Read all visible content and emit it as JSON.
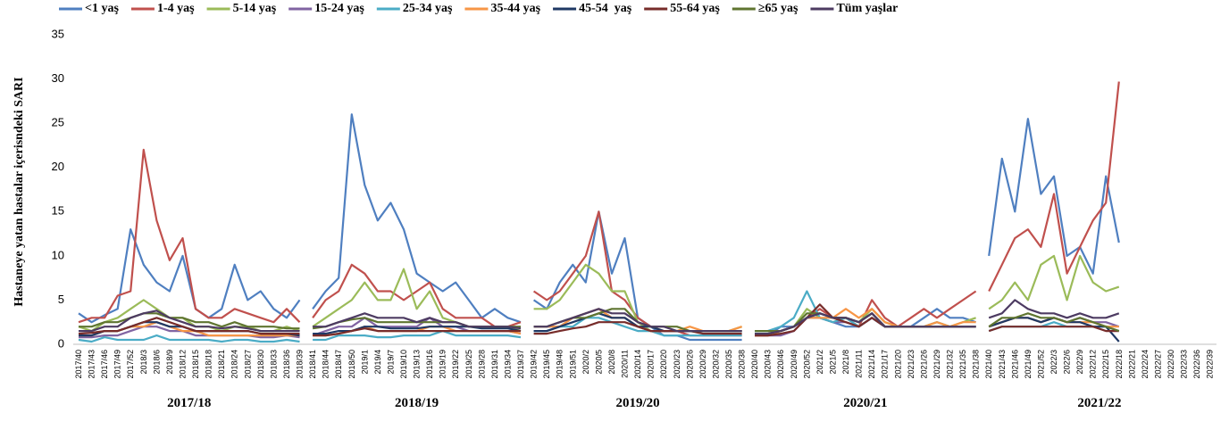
{
  "chart_data": {
    "type": "line",
    "y_label": "Hastaneye yatan hastalar içerisndeki SARI",
    "ylim": [
      0,
      35
    ],
    "yticks": [
      0,
      5,
      10,
      15,
      20,
      25,
      30,
      35
    ],
    "grid": false,
    "legend": "top",
    "groups": [
      {
        "label": "2017/18",
        "categories": [
          "2017/40",
          "2017/43",
          "2017/46",
          "2017/49",
          "2017/52",
          "2018/3",
          "2018/6",
          "2018/9",
          "2018/12",
          "2018/15",
          "2018/18",
          "2018/21",
          "2018/24",
          "2018/27",
          "2018/30",
          "2018/33",
          "2018/36",
          "2018/39"
        ]
      },
      {
        "label": "2018/19",
        "categories": [
          "2018/41",
          "2018/44",
          "2018/47",
          "2018/50",
          "2019/1",
          "2019/4",
          "2019/7",
          "2019/10",
          "2019/13",
          "2019/16",
          "2019/19",
          "2019/22",
          "2019/25",
          "2019/28",
          "2019/31",
          "2019/34",
          "2019/37"
        ]
      },
      {
        "label": "2019/20",
        "categories": [
          "2019/42",
          "2019/45",
          "2019/48",
          "2019/51",
          "2020/2",
          "2020/5",
          "2020/8",
          "2020/11",
          "2020/14",
          "2020/17",
          "2020/20",
          "2020/23",
          "2020/26",
          "2020/29",
          "2020/32",
          "2020/35",
          "2020/38"
        ]
      },
      {
        "label": "2020/21",
        "categories": [
          "2020/40",
          "2020/43",
          "2020/46",
          "2020/49",
          "2020/52",
          "2021/2",
          "2021/5",
          "2021/8",
          "2021/11",
          "2021/14",
          "2021/17",
          "2021/20",
          "2021/23",
          "2021/26",
          "2021/29",
          "2021/32",
          "2021/35",
          "2021/38"
        ]
      },
      {
        "label": "2021/22",
        "categories": [
          "2021/40",
          "2021/43",
          "2021/46",
          "2021/49",
          "2021/52",
          "2022/3",
          "2022/6",
          "2022/9",
          "2022/12",
          "2022/15",
          "2022/18",
          "2022/21",
          "2022/24",
          "2022/27",
          "2022/30",
          "2022/33",
          "2022/36",
          "2022/39"
        ]
      }
    ],
    "series": [
      {
        "name": "<1 yaş",
        "color": "#4f7fc0",
        "values": [
          3.5,
          2.5,
          3.3,
          4,
          13,
          9,
          7,
          6,
          10,
          4,
          3,
          4,
          9,
          5,
          6,
          4,
          3,
          5,
          4,
          6,
          7.5,
          26,
          18,
          14,
          16,
          13,
          8,
          7,
          6,
          7,
          5,
          3,
          4,
          3,
          2.5,
          5,
          4,
          7,
          9,
          7,
          15,
          8,
          12,
          3,
          2,
          1,
          1,
          0.5,
          0.5,
          0.5,
          0.5,
          0.5,
          1,
          1,
          2,
          2,
          3,
          3,
          2.5,
          2,
          2,
          3,
          2,
          2,
          2,
          3,
          4,
          3,
          3,
          2.5,
          10,
          21,
          15,
          25.5,
          17,
          19,
          10,
          11,
          8,
          19,
          11.5,
          null,
          null,
          null,
          null,
          null,
          null,
          null
        ]
      },
      {
        "name": "1-4 yaş",
        "color": "#c0504d",
        "values": [
          2.5,
          3,
          3,
          5.5,
          6,
          22,
          14,
          9.5,
          12,
          4,
          3,
          3,
          4,
          3.5,
          3,
          2.5,
          4,
          2.5,
          3,
          5,
          6,
          9,
          8,
          6,
          6,
          5,
          6,
          7,
          4,
          3,
          3,
          3,
          2,
          2,
          2.5,
          6,
          5,
          6,
          8,
          10,
          15,
          6,
          5,
          3,
          2,
          1.5,
          1.5,
          1,
          1,
          1,
          1,
          1,
          1,
          1,
          1.5,
          2,
          3,
          4,
          3,
          3,
          2,
          5,
          3,
          2,
          3,
          4,
          3,
          4,
          5,
          6,
          6,
          9,
          12,
          13,
          11,
          17,
          8,
          11,
          14,
          16,
          29.7,
          null,
          null,
          null,
          null,
          null,
          null,
          null
        ]
      },
      {
        "name": "5-14 yaş",
        "color": "#9bbb59",
        "values": [
          2,
          1.5,
          2.5,
          3,
          4,
          5,
          4,
          3,
          3,
          2,
          2,
          1.5,
          2,
          2,
          1.5,
          1.5,
          2,
          1.5,
          2,
          3,
          4,
          5,
          7,
          5,
          5,
          8.5,
          4,
          6,
          3,
          2.5,
          2,
          2,
          2,
          2,
          1.5,
          4,
          4,
          5,
          7,
          9,
          8,
          6,
          6,
          2.5,
          1.5,
          1.5,
          1.5,
          1.5,
          1.5,
          1.5,
          1.5,
          2,
          1,
          1,
          1.5,
          2,
          4,
          3,
          2.5,
          3,
          2.5,
          4,
          2.5,
          2,
          2,
          2,
          2.5,
          2,
          2.5,
          3,
          4,
          5,
          7,
          5,
          9,
          10,
          5,
          10,
          7,
          6,
          6.5,
          null,
          null,
          null,
          null,
          null,
          null,
          null
        ]
      },
      {
        "name": "15-24 yaş",
        "color": "#8064a2",
        "values": [
          0.8,
          0.8,
          1,
          1,
          1.5,
          2,
          2,
          1.5,
          1.5,
          1,
          1,
          1,
          1,
          1,
          0.8,
          0.8,
          1,
          0.8,
          1,
          1.5,
          2,
          2,
          3,
          2,
          2,
          2,
          2,
          3,
          2,
          2,
          1.5,
          1.5,
          1.5,
          1.5,
          1.2,
          2,
          2,
          2,
          3,
          3.5,
          4,
          3,
          3,
          2,
          1.5,
          1.5,
          1.5,
          1.5,
          1.5,
          1.5,
          1.5,
          1.5,
          1,
          1,
          1,
          1.5,
          3,
          3,
          2.5,
          2.5,
          2,
          3,
          2,
          2,
          2,
          2,
          2,
          2,
          2,
          2,
          2,
          2.5,
          3,
          3,
          2.5,
          3,
          2.5,
          3,
          2.5,
          2.5,
          2,
          null,
          null,
          null,
          null,
          null,
          null,
          null
        ]
      },
      {
        "name": "25-34 yaş",
        "color": "#4bacc6",
        "values": [
          0.5,
          0.3,
          0.8,
          0.5,
          0.5,
          0.5,
          1,
          0.5,
          0.5,
          0.5,
          0.5,
          0.3,
          0.5,
          0.5,
          0.3,
          0.3,
          0.5,
          0.3,
          0.5,
          0.5,
          1,
          1,
          1,
          0.8,
          0.8,
          1,
          1,
          1,
          1.5,
          1,
          1,
          1,
          1,
          1,
          0.8,
          1.5,
          1.5,
          2,
          2,
          3,
          3,
          2.5,
          2,
          1.5,
          1.5,
          1,
          1,
          1,
          1,
          1,
          1,
          1,
          1.5,
          1.5,
          2,
          3,
          6,
          3,
          2.5,
          3,
          2,
          3,
          2,
          2,
          2,
          2,
          2.5,
          2,
          2,
          2,
          1.5,
          2,
          2,
          2,
          2,
          2.5,
          2,
          2,
          2,
          2,
          1.5,
          null,
          null,
          null,
          null,
          null,
          null,
          null
        ]
      },
      {
        "name": "35-44 yaş",
        "color": "#f79646",
        "values": [
          1,
          1,
          1.5,
          1.5,
          2,
          2,
          2.5,
          2,
          1.5,
          1.5,
          1,
          1,
          1,
          1,
          1,
          1,
          1,
          1,
          1,
          1,
          1.2,
          1.5,
          2,
          1.5,
          1.5,
          1.5,
          1.5,
          2,
          2,
          1.5,
          1.5,
          1.5,
          1.5,
          1.5,
          1.2,
          2,
          2,
          2,
          3,
          3.5,
          4,
          3,
          3,
          2,
          1.5,
          1.5,
          1.5,
          2,
          1.5,
          1.5,
          1.5,
          2,
          1,
          1,
          1.5,
          2,
          3,
          3,
          3,
          4,
          3,
          4,
          2.5,
          2,
          2,
          2,
          2.5,
          2,
          2.5,
          2.5,
          2,
          2.5,
          3,
          3,
          2.5,
          3,
          2.5,
          2.5,
          2.5,
          2,
          2,
          null,
          null,
          null,
          null,
          null,
          null,
          null
        ]
      },
      {
        "name": "45-54  yaş",
        "color": "#1f3864",
        "values": [
          1,
          1,
          1.5,
          1.5,
          2,
          2.5,
          2.5,
          2,
          2,
          1.5,
          1.5,
          1.5,
          1.5,
          1.5,
          1.2,
          1.2,
          1.2,
          1,
          1.2,
          1.2,
          1.5,
          1.5,
          2,
          2,
          1.8,
          1.8,
          1.8,
          2,
          2,
          2,
          2,
          1.8,
          1.8,
          1.8,
          1.5,
          1.5,
          1.5,
          2,
          2.5,
          3,
          3.5,
          3,
          3,
          2,
          2,
          1.5,
          1.5,
          1.5,
          1.5,
          1.5,
          1.5,
          1.5,
          1.2,
          1.2,
          1.5,
          2,
          3,
          3.5,
          3,
          3,
          2.5,
          3.5,
          2,
          2,
          2,
          2,
          2,
          2,
          2,
          2,
          2,
          2.5,
          3,
          3,
          2.5,
          3,
          2.5,
          2.5,
          2,
          2,
          0.3,
          null,
          null,
          null,
          null,
          null,
          null,
          null
        ]
      },
      {
        "name": "55-64 yaş",
        "color": "#772c2a",
        "values": [
          1.2,
          1.3,
          1.5,
          1.5,
          2,
          2.5,
          3,
          2.5,
          2,
          1.5,
          1.5,
          1.5,
          1.5,
          1.5,
          1.2,
          1.2,
          1.2,
          1.2,
          1,
          1,
          1.2,
          1.5,
          1.8,
          1.5,
          1.5,
          1.5,
          1.5,
          1.5,
          1.5,
          1.5,
          1.5,
          1.5,
          1.5,
          1.5,
          1.5,
          1.2,
          1.2,
          1.5,
          1.8,
          2,
          2.5,
          2.5,
          2.5,
          2,
          1.5,
          1.5,
          1.5,
          1.5,
          1.2,
          1.2,
          1.2,
          1.2,
          1,
          1,
          1.2,
          1.5,
          3,
          4.5,
          3,
          2.5,
          2,
          3,
          2,
          2,
          2,
          2,
          2,
          2,
          2,
          2,
          1.5,
          2,
          2,
          2,
          2,
          2,
          2,
          2,
          2,
          1.5,
          1.5,
          null,
          null,
          null,
          null,
          null,
          null,
          null
        ]
      },
      {
        "name": "≥65 yaş",
        "color": "#5f7530",
        "values": [
          2,
          2,
          2.5,
          2.5,
          3,
          3.5,
          3.5,
          3,
          3,
          2.5,
          2.5,
          2,
          2.5,
          2,
          2,
          2,
          1.8,
          1.8,
          1.8,
          2,
          2.5,
          2.8,
          3,
          2.5,
          2.5,
          2.5,
          2.5,
          2.5,
          2.5,
          2.5,
          2,
          2,
          2,
          2,
          2,
          2,
          2,
          2.5,
          3,
          3,
          3.5,
          4,
          4,
          2.5,
          2,
          2,
          2,
          1.5,
          1.5,
          1.5,
          1.5,
          1.5,
          1.5,
          1.5,
          1.5,
          2,
          3.5,
          3.5,
          3,
          3,
          2.5,
          3.5,
          2,
          2,
          2,
          2,
          2,
          2,
          2,
          2,
          2,
          3,
          3,
          3.5,
          3,
          3,
          2.5,
          3,
          2.5,
          2,
          1.5,
          null,
          null,
          null,
          null,
          null,
          null,
          null
        ]
      },
      {
        "name": "Tüm yaşlar",
        "color": "#4d3b62",
        "values": [
          1.5,
          1.5,
          2,
          2,
          3,
          3.5,
          3.8,
          3,
          2.5,
          2,
          2,
          1.8,
          2,
          1.8,
          1.5,
          1.5,
          1.5,
          1.5,
          2,
          2,
          2.5,
          3,
          3.5,
          3,
          3,
          3,
          2.5,
          3,
          2.5,
          2.5,
          2,
          2,
          2,
          2,
          1.8,
          2,
          2,
          2.5,
          3,
          3.5,
          4,
          3.5,
          3.5,
          2.5,
          2,
          2,
          1.5,
          1.5,
          1.5,
          1.5,
          1.5,
          1.5,
          1.2,
          1.2,
          1.5,
          2,
          3,
          3.5,
          3,
          3,
          2.5,
          3.5,
          2,
          2,
          2,
          2,
          2,
          2,
          2,
          2,
          3,
          3.5,
          5,
          4,
          3.5,
          3.5,
          3,
          3.5,
          3,
          3,
          3.5,
          null,
          null,
          null,
          null,
          null,
          null,
          null
        ]
      }
    ]
  }
}
